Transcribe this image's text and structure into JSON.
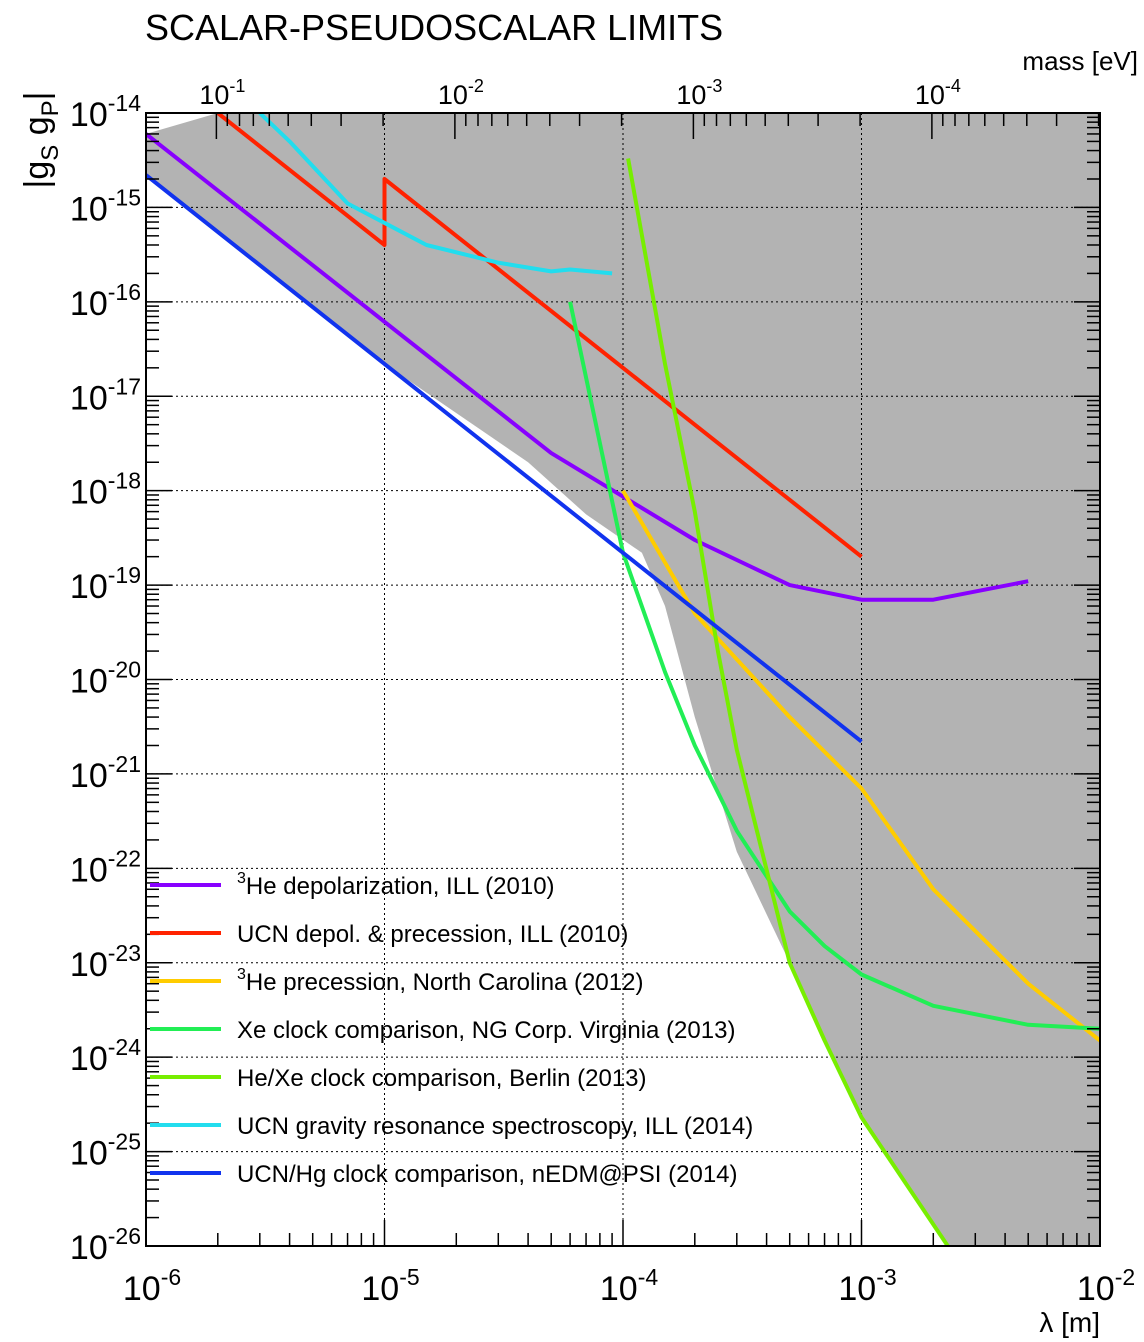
{
  "chart_data": {
    "type": "line",
    "title": "SCALAR-PSEUDOSCALAR LIMITS",
    "xlabel": "λ  [m]",
    "x2label": "mass [eV]",
    "ylabel_parts": [
      "|g",
      "S",
      " g",
      "P",
      "|"
    ],
    "xscale": "log",
    "yscale": "log",
    "xlim": [
      1e-06,
      0.01
    ],
    "ylim": [
      1e-26,
      1e-14
    ],
    "x_ticks": [
      {
        "value": 1e-06,
        "base": "10",
        "exp": "-6"
      },
      {
        "value": 1e-05,
        "base": "10",
        "exp": "-5"
      },
      {
        "value": 0.0001,
        "base": "10",
        "exp": "-4"
      },
      {
        "value": 0.001,
        "base": "10",
        "exp": "-3"
      },
      {
        "value": 0.01,
        "base": "10",
        "exp": "-2"
      }
    ],
    "y_ticks": [
      {
        "value": 1e-26,
        "base": "10",
        "exp": "-26"
      },
      {
        "value": 1e-25,
        "base": "10",
        "exp": "-25"
      },
      {
        "value": 1e-24,
        "base": "10",
        "exp": "-24"
      },
      {
        "value": 1e-23,
        "base": "10",
        "exp": "-23"
      },
      {
        "value": 1e-22,
        "base": "10",
        "exp": "-22"
      },
      {
        "value": 1e-21,
        "base": "10",
        "exp": "-21"
      },
      {
        "value": 1e-20,
        "base": "10",
        "exp": "-20"
      },
      {
        "value": 1e-19,
        "base": "10",
        "exp": "-19"
      },
      {
        "value": 1e-18,
        "base": "10",
        "exp": "-18"
      },
      {
        "value": 1e-17,
        "base": "10",
        "exp": "-17"
      },
      {
        "value": 1e-16,
        "base": "10",
        "exp": "-16"
      },
      {
        "value": 1e-15,
        "base": "10",
        "exp": "-15"
      },
      {
        "value": 1e-14,
        "base": "10",
        "exp": "-14"
      }
    ],
    "mass_ticks": [
      {
        "value": 0.1,
        "base": "10",
        "exp": "-1"
      },
      {
        "value": 0.01,
        "base": "10",
        "exp": "-2"
      },
      {
        "value": 0.001,
        "base": "10",
        "exp": "-3"
      },
      {
        "value": 0.0001,
        "base": "10",
        "exp": "-4"
      }
    ],
    "grid": "dotted",
    "legend_position": "bottom-left",
    "excluded_region": {
      "fill": "#b3b3b3",
      "boundary": [
        [
          1e-06,
          6e-15
        ],
        [
          2e-06,
          1e-14
        ],
        [
          0.01,
          1e-14
        ],
        [
          0.01,
          1e-26
        ],
        [
          0.0023,
          1e-26
        ],
        [
          0.002,
          1.6e-26
        ],
        [
          0.001,
          2.3e-25
        ],
        [
          0.0007,
          1.5e-24
        ],
        [
          0.0005,
          1e-23
        ],
        [
          0.0003,
          1.5e-22
        ],
        [
          0.0002,
          4e-21
        ],
        [
          0.00015,
          6e-20
        ],
        [
          0.00012,
          2.2e-19
        ],
        [
          7e-05,
          5.6e-19
        ],
        [
          4e-05,
          2e-18
        ],
        [
          1e-05,
          2.2e-17
        ],
        [
          1e-06,
          2.2e-15
        ]
      ]
    },
    "series": [
      {
        "name_sup": "3",
        "name": "He depolarization, ILL (2010)",
        "color": "#8800ff",
        "points": [
          [
            1e-06,
            6e-15
          ],
          [
            5e-05,
            2.5e-18
          ],
          [
            0.0002,
            3e-19
          ],
          [
            0.0005,
            1e-19
          ],
          [
            0.001,
            7e-20
          ],
          [
            0.002,
            7e-20
          ],
          [
            0.005,
            1.1e-19
          ]
        ]
      },
      {
        "name_sup": "",
        "name": "UCN depol. & precession, ILL (2010)",
        "color": "#ff2200",
        "points": [
          [
            2e-06,
            1e-14
          ],
          [
            1e-05,
            4e-16
          ],
          [
            1e-05,
            2e-15
          ],
          [
            0.001,
            2e-19
          ]
        ]
      },
      {
        "name_sup": "3",
        "name": "He precession, North Carolina  (2012)",
        "color": "#ffcc00",
        "points": [
          [
            0.0001,
            1e-18
          ],
          [
            0.0002,
            5e-20
          ],
          [
            0.0005,
            4e-21
          ],
          [
            0.001,
            7e-22
          ],
          [
            0.002,
            6e-23
          ],
          [
            0.005,
            6e-24
          ],
          [
            0.01,
            1.5e-24
          ]
        ]
      },
      {
        "name_sup": "",
        "name": "Xe clock comparison, NG Corp. Virginia (2013)",
        "color": "#22ee55",
        "points": [
          [
            6e-05,
            1e-16
          ],
          [
            0.0001,
            2.2e-19
          ],
          [
            0.00015,
            1.2e-20
          ],
          [
            0.0002,
            2e-21
          ],
          [
            0.0003,
            2.5e-22
          ],
          [
            0.0005,
            3.5e-23
          ],
          [
            0.0007,
            1.5e-23
          ],
          [
            0.001,
            7.5e-24
          ],
          [
            0.002,
            3.5e-24
          ],
          [
            0.005,
            2.2e-24
          ],
          [
            0.01,
            2e-24
          ]
        ]
      },
      {
        "name_sup": "",
        "name": "He/Xe clock comparison, Berlin (2013)",
        "color": "#77ee00",
        "points": [
          [
            0.000105,
            3.3e-15
          ],
          [
            0.00015,
            2.2e-17
          ],
          [
            0.0002,
            6e-19
          ],
          [
            0.00025,
            2e-20
          ],
          [
            0.0003,
            1.8e-21
          ],
          [
            0.0005,
            1e-23
          ],
          [
            0.0007,
            1.5e-24
          ],
          [
            0.001,
            2.3e-25
          ],
          [
            0.0015,
            5e-26
          ],
          [
            0.0023,
            1e-26
          ]
        ]
      },
      {
        "name_sup": "",
        "name": "UCN gravity resonance spectroscopy, ILL (2014)",
        "color": "#22ddee",
        "points": [
          [
            3e-06,
            1e-14
          ],
          [
            4e-06,
            5e-15
          ],
          [
            7e-06,
            1.1e-15
          ],
          [
            1.5e-05,
            4e-16
          ],
          [
            3e-05,
            2.6e-16
          ],
          [
            5e-05,
            2.1e-16
          ],
          [
            6e-05,
            2.2e-16
          ],
          [
            9e-05,
            2e-16
          ]
        ]
      },
      {
        "name_sup": "",
        "name": "UCN/Hg clock comparison, nEDM@PSI (2014)",
        "color": "#1133ee",
        "points": [
          [
            1e-06,
            2.2e-15
          ],
          [
            1e-05,
            2.2e-17
          ],
          [
            0.0001,
            2.2e-19
          ],
          [
            0.001,
            2.2e-21
          ]
        ]
      }
    ]
  }
}
